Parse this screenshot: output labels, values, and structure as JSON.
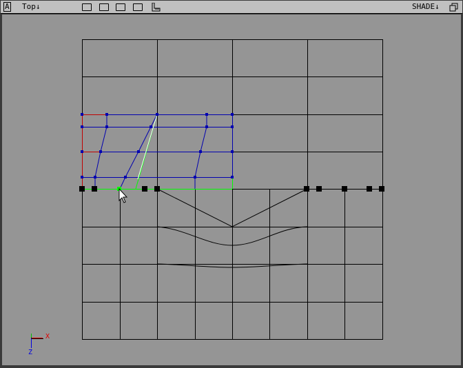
{
  "header": {
    "window_type_label": "A",
    "view_menu": "Top↓",
    "layer_buttons": [
      "layer-1",
      "layer-2",
      "layer-3",
      "layer-4"
    ],
    "shade_menu": "SHADE↓",
    "icons": [
      "window-type-icon",
      "ruler-icon",
      "maximize-icon"
    ]
  },
  "viewport": {
    "axis_labels": {
      "x": "X",
      "z": "Z"
    },
    "colors": {
      "background": "#959595",
      "grid": "#000000",
      "selected_mesh": "#0000b0",
      "edge_selected": "#00ff00",
      "seam": "#c00000"
    }
  }
}
